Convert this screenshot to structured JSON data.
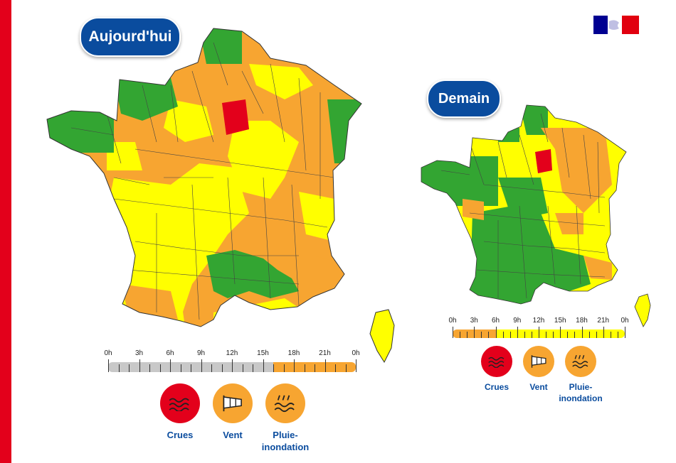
{
  "palette": {
    "green": "#33a532",
    "yellow": "#ffff00",
    "orange": "#f7a531",
    "red": "#e3001b",
    "grey": "#c8c8c8",
    "navy": "#0a4c9e"
  },
  "today": {
    "title": "Aujourd'hui",
    "timeline": {
      "labels": [
        "0h",
        "3h",
        "6h",
        "9h",
        "12h",
        "15h",
        "18h",
        "21h",
        "0h"
      ],
      "segments": [
        {
          "from_hour": 0,
          "to_hour": 16,
          "level": "grey"
        },
        {
          "from_hour": 16,
          "to_hour": 24,
          "level": "orange"
        }
      ]
    },
    "phenomena": [
      {
        "label": "Crues",
        "level": "red",
        "icon": "waves-icon"
      },
      {
        "label": "Vent",
        "level": "orange",
        "icon": "windsock-icon"
      },
      {
        "label": "Pluie-inondation",
        "label_lines": [
          "Pluie-",
          "inondation"
        ],
        "level": "orange",
        "icon": "rain-flood-icon"
      }
    ]
  },
  "tomorrow": {
    "title": "Demain",
    "timeline": {
      "labels": [
        "0h",
        "3h",
        "6h",
        "9h",
        "12h",
        "15h",
        "18h",
        "21h",
        "0h"
      ],
      "segments": [
        {
          "from_hour": 0,
          "to_hour": 6,
          "level": "orange"
        },
        {
          "from_hour": 6,
          "to_hour": 24,
          "level": "yellow"
        }
      ]
    },
    "phenomena": [
      {
        "label": "Crues",
        "level": "red",
        "icon": "waves-icon"
      },
      {
        "label": "Vent",
        "level": "orange",
        "icon": "windsock-icon"
      },
      {
        "label": "Pluie-inondation",
        "label_lines": [
          "Pluie-",
          "inondation"
        ],
        "level": "orange",
        "icon": "rain-flood-icon"
      }
    ]
  }
}
